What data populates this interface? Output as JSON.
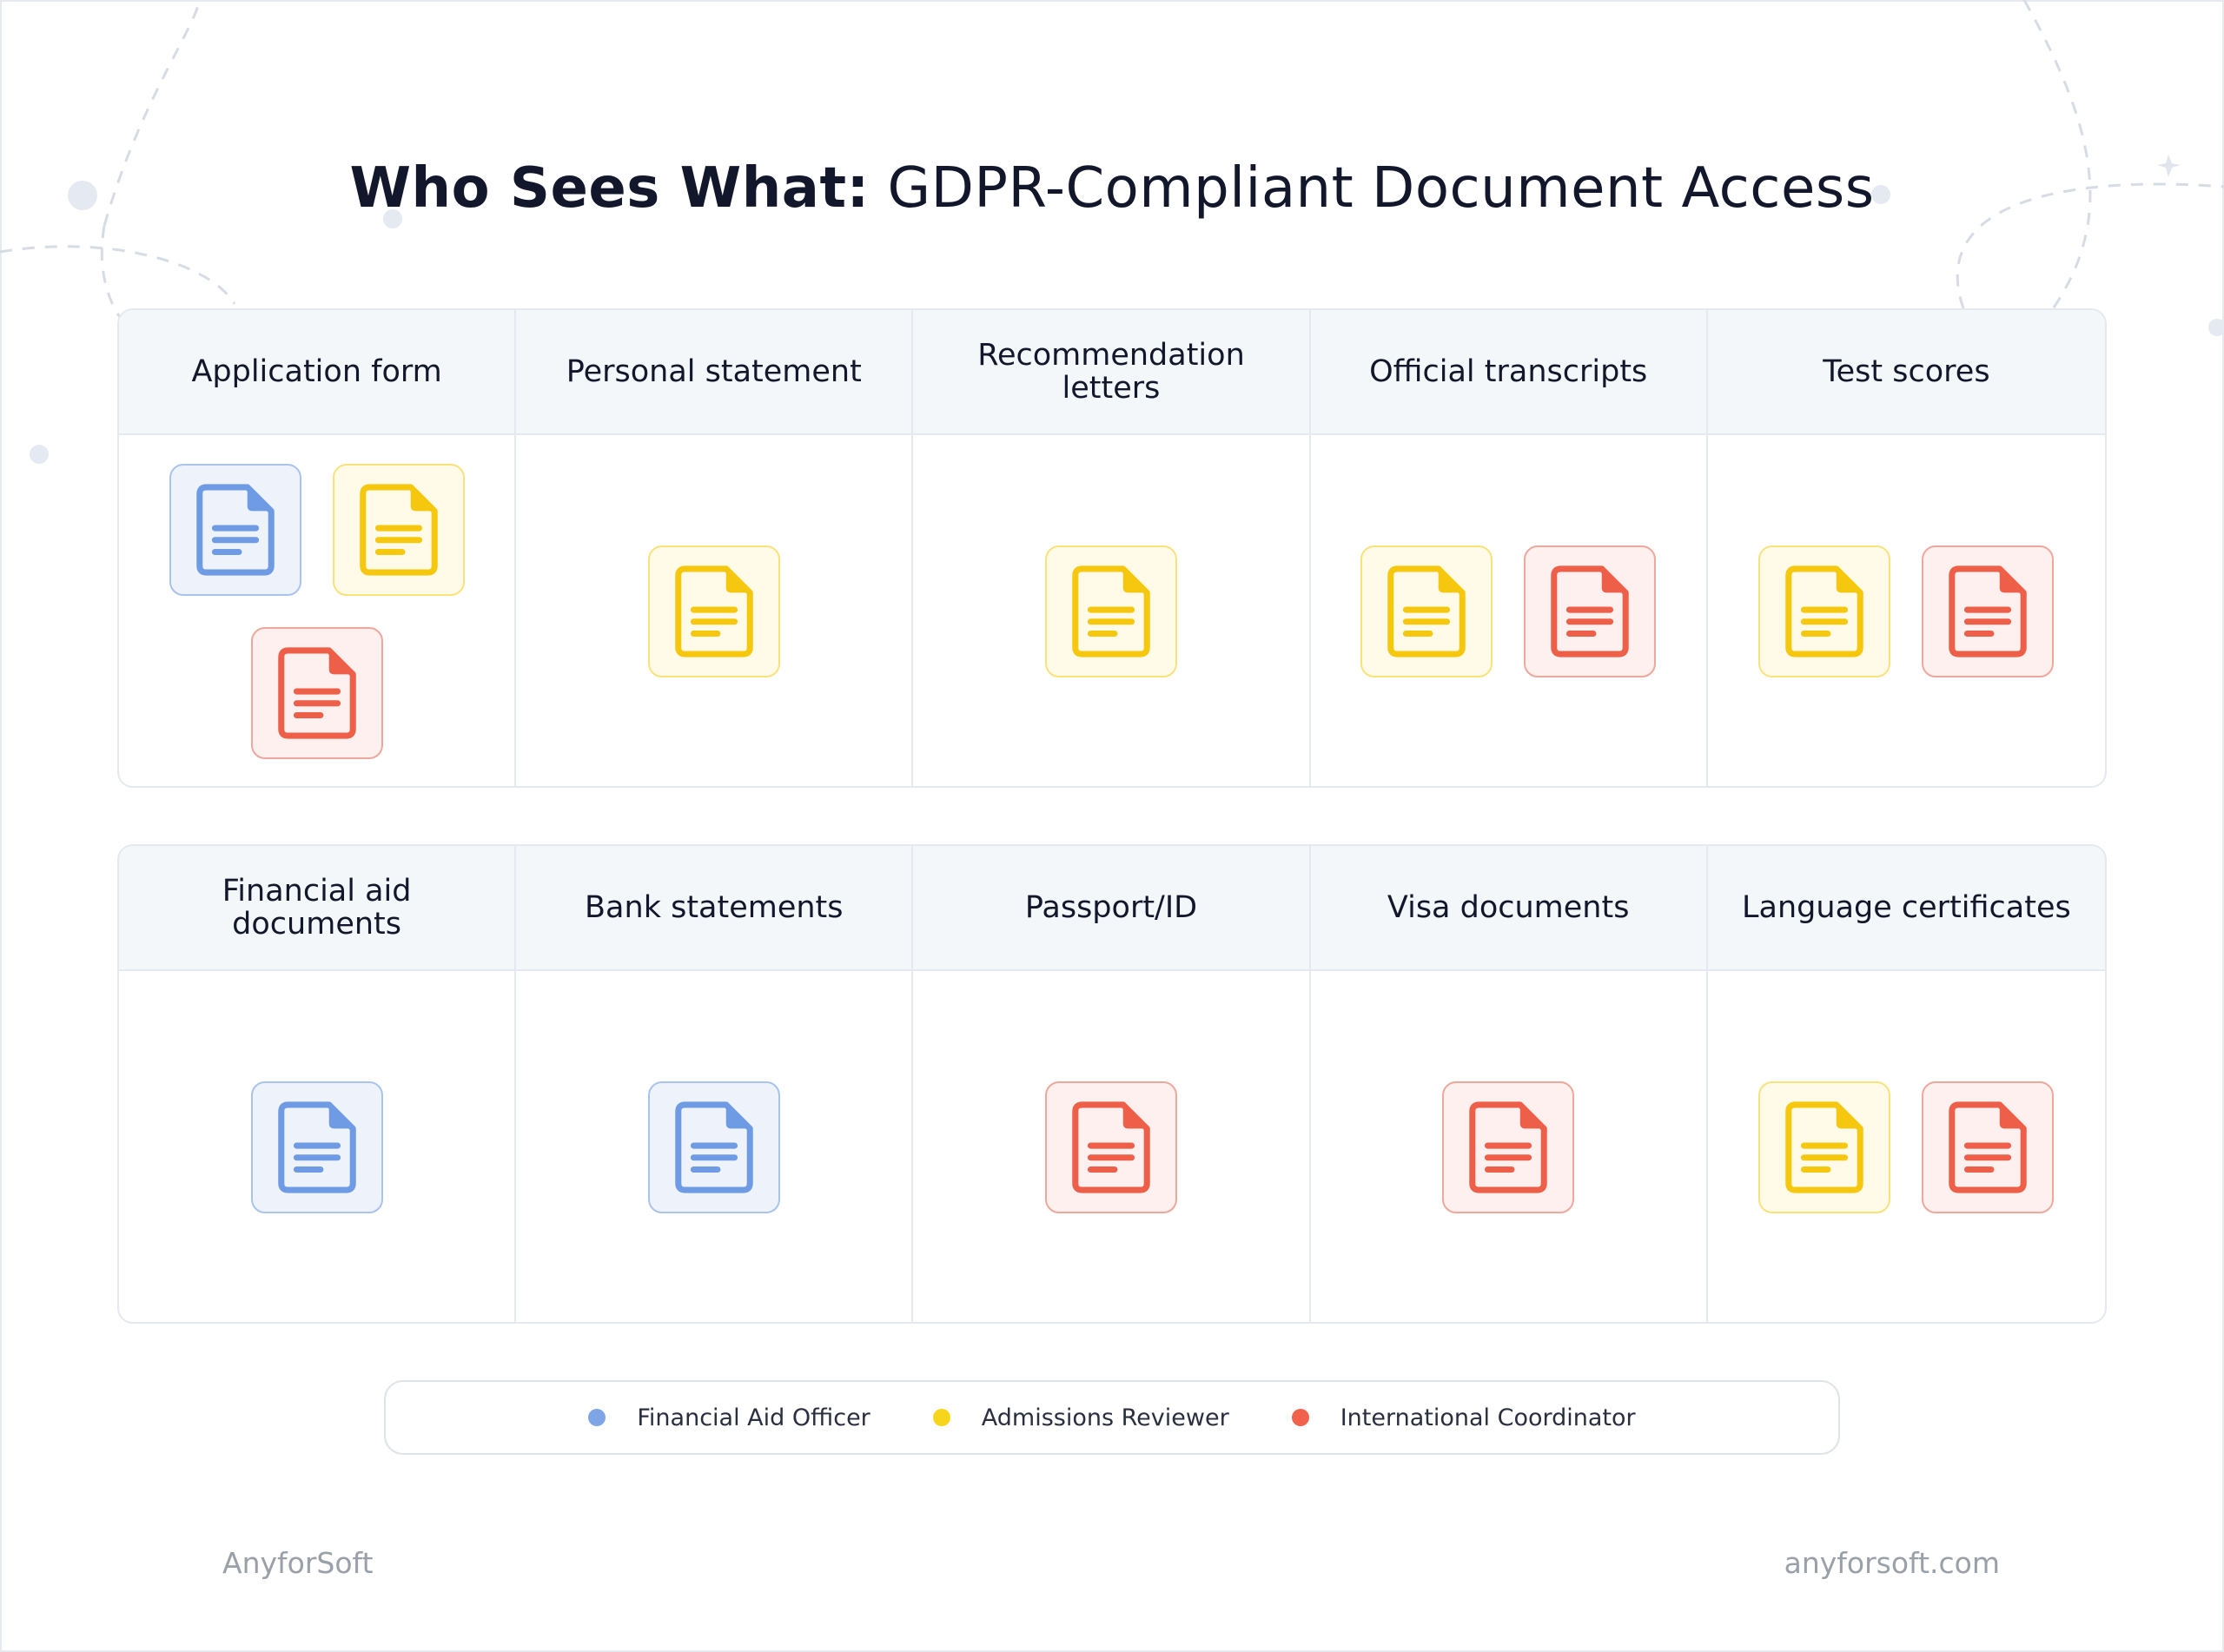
{
  "title": {
    "bold": "Who Sees What:",
    "light": "GDPR-Compliant Document Access"
  },
  "colors": {
    "blue": "#6e9be3",
    "yellow": "#f5c80f",
    "red": "#ee5f4a"
  },
  "top_table": {
    "columns": [
      {
        "header": "Application form",
        "access": [
          "blue",
          "yellow",
          "red"
        ]
      },
      {
        "header": "Personal statement",
        "access": [
          "yellow"
        ]
      },
      {
        "header": "Recommendation letters",
        "access": [
          "yellow"
        ]
      },
      {
        "header": "Official transcripts",
        "access": [
          "yellow",
          "red"
        ]
      },
      {
        "header": "Test scores",
        "access": [
          "yellow",
          "red"
        ]
      }
    ]
  },
  "bottom_table": {
    "columns": [
      {
        "header": "Financial aid documents",
        "access": [
          "blue"
        ]
      },
      {
        "header": "Bank statements",
        "access": [
          "blue"
        ]
      },
      {
        "header": "Passport/ID",
        "access": [
          "red"
        ]
      },
      {
        "header": "Visa documents",
        "access": [
          "red"
        ]
      },
      {
        "header": "Language certificates",
        "access": [
          "yellow",
          "red"
        ]
      }
    ]
  },
  "legend": [
    {
      "label": "Financial Aid Officer",
      "color": "#7fa5e6"
    },
    {
      "label": "Admissions Reviewer",
      "color": "#f7d51c"
    },
    {
      "label": "International Coordinator",
      "color": "#f0624c"
    }
  ],
  "footer": {
    "left": "AnyforSoft",
    "right": "anyforsoft.com"
  }
}
